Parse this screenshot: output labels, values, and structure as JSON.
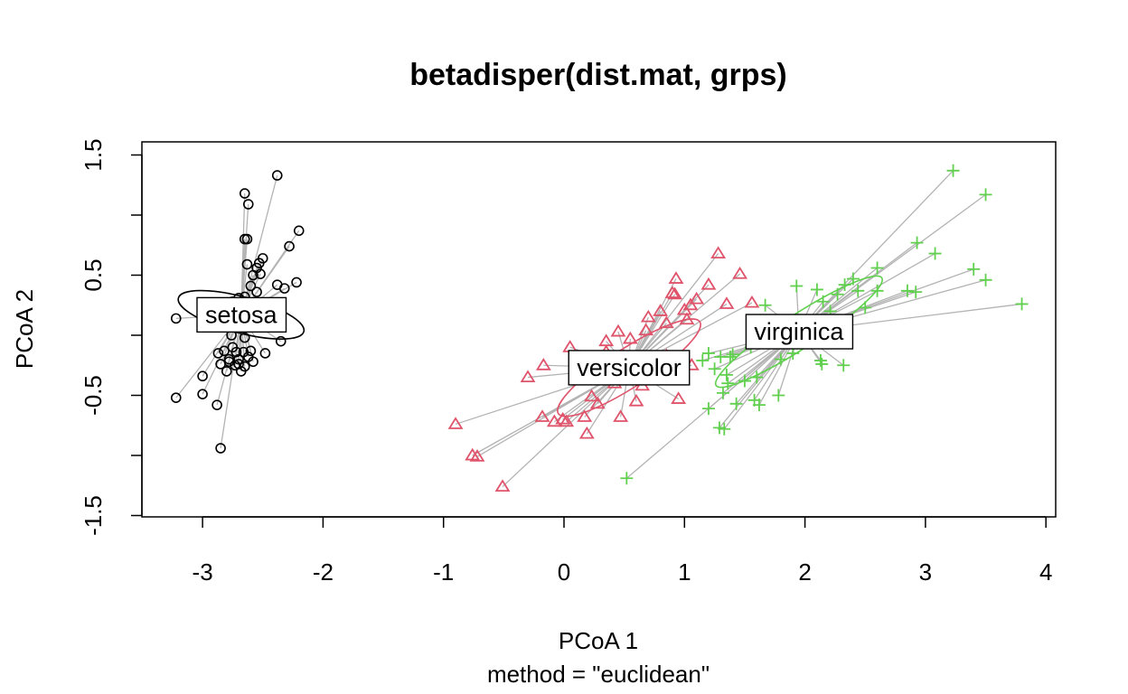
{
  "chart_data": {
    "type": "scatter",
    "title": "betadisper(dist.mat, grps)",
    "xlabel": "PCoA 1",
    "sublabel": "method = \"euclidean\"",
    "ylabel": "PCoA 2",
    "xlim": [
      -3.5,
      4.1
    ],
    "ylim": [
      -1.5,
      1.6
    ],
    "x_ticks": [
      "-3",
      "-2",
      "-1",
      "0",
      "1",
      "2",
      "3",
      "4"
    ],
    "y_ticks": [
      "-1.5",
      "-0.5",
      "0.5",
      "1.5"
    ],
    "segment_color": "#b3b3b3",
    "groups": [
      {
        "name": "setosa",
        "marker": "circle",
        "color": "#000000",
        "centroid": [
          -2.68,
          0.17
        ],
        "ellipse": {
          "rx": 0.15,
          "ry": 0.54,
          "angle_deg": 75
        },
        "points": [
          [
            -3.22,
            0.14
          ],
          [
            -3.22,
            -0.52
          ],
          [
            -3.0,
            -0.34
          ],
          [
            -3.0,
            -0.49
          ],
          [
            -2.88,
            -0.58
          ],
          [
            -2.85,
            -0.94
          ],
          [
            -2.38,
            1.33
          ],
          [
            -2.65,
            1.18
          ],
          [
            -2.62,
            1.09
          ],
          [
            -2.65,
            0.8
          ],
          [
            -2.63,
            0.8
          ],
          [
            -2.2,
            0.87
          ],
          [
            -2.28,
            0.74
          ],
          [
            -2.5,
            0.64
          ],
          [
            -2.53,
            0.6
          ],
          [
            -2.63,
            0.59
          ],
          [
            -2.55,
            0.56
          ],
          [
            -2.58,
            0.5
          ],
          [
            -2.52,
            0.51
          ],
          [
            -2.22,
            0.44
          ],
          [
            -2.38,
            0.42
          ],
          [
            -2.32,
            0.39
          ],
          [
            -2.6,
            0.41
          ],
          [
            -2.55,
            0.36
          ],
          [
            -2.65,
            0.32
          ],
          [
            -2.7,
            0.31
          ],
          [
            -2.75,
            0.28
          ],
          [
            -2.68,
            0.15
          ],
          [
            -2.7,
            0.08
          ],
          [
            -2.76,
            0.0
          ],
          [
            -2.65,
            -0.02
          ],
          [
            -2.35,
            -0.05
          ],
          [
            -2.75,
            -0.1
          ],
          [
            -2.82,
            -0.13
          ],
          [
            -2.72,
            -0.14
          ],
          [
            -2.66,
            -0.14
          ],
          [
            -2.6,
            -0.13
          ],
          [
            -2.48,
            -0.15
          ],
          [
            -2.62,
            -0.18
          ],
          [
            -2.7,
            -0.2
          ],
          [
            -2.78,
            -0.2
          ],
          [
            -2.87,
            -0.15
          ],
          [
            -2.78,
            -0.22
          ],
          [
            -2.7,
            -0.24
          ],
          [
            -2.58,
            -0.22
          ],
          [
            -2.65,
            -0.26
          ],
          [
            -2.73,
            -0.25
          ],
          [
            -2.85,
            -0.24
          ],
          [
            -2.8,
            -0.3
          ],
          [
            -2.68,
            -0.3
          ]
        ]
      },
      {
        "name": "versicolor",
        "marker": "triangle",
        "color": "#DF536B",
        "centroid": [
          0.54,
          -0.27
        ],
        "ellipse": {
          "rx": 0.7,
          "ry": 0.16,
          "angle_deg": 33
        },
        "points": [
          [
            -0.9,
            -0.74
          ],
          [
            -0.76,
            -1.0
          ],
          [
            -0.72,
            -1.01
          ],
          [
            -0.51,
            -1.26
          ],
          [
            -0.18,
            -0.68
          ],
          [
            -0.08,
            -0.72
          ],
          [
            -0.01,
            -0.7
          ],
          [
            0.02,
            -0.72
          ],
          [
            0.17,
            -0.68
          ],
          [
            0.19,
            -0.82
          ],
          [
            0.23,
            -0.51
          ],
          [
            0.28,
            -0.57
          ],
          [
            0.47,
            -0.68
          ],
          [
            -0.3,
            -0.35
          ],
          [
            -0.17,
            -0.25
          ],
          [
            0.05,
            -0.1
          ],
          [
            0.1,
            -0.18
          ],
          [
            0.2,
            -0.22
          ],
          [
            0.35,
            -0.14
          ],
          [
            0.36,
            -0.26
          ],
          [
            0.5,
            -0.18
          ],
          [
            0.6,
            -0.28
          ],
          [
            0.65,
            -0.42
          ],
          [
            0.72,
            -0.33
          ],
          [
            0.78,
            -0.26
          ],
          [
            0.85,
            -0.17
          ],
          [
            0.95,
            -0.53
          ],
          [
            1.06,
            -0.25
          ],
          [
            0.35,
            -0.05
          ],
          [
            0.45,
            0.03
          ],
          [
            0.55,
            -0.03
          ],
          [
            0.68,
            0.04
          ],
          [
            0.7,
            0.15
          ],
          [
            0.8,
            0.2
          ],
          [
            0.92,
            0.34
          ],
          [
            0.9,
            0.35
          ],
          [
            1.0,
            0.21
          ],
          [
            1.05,
            0.25
          ],
          [
            1.1,
            0.3
          ],
          [
            1.2,
            0.42
          ],
          [
            1.35,
            0.26
          ],
          [
            0.93,
            0.47
          ],
          [
            1.28,
            0.68
          ],
          [
            1.46,
            0.51
          ],
          [
            1.56,
            0.27
          ],
          [
            0.85,
            0.1
          ],
          [
            1.02,
            0.13
          ],
          [
            0.6,
            -0.55
          ],
          [
            0.3,
            -0.35
          ],
          [
            0.42,
            -0.4
          ]
        ]
      },
      {
        "name": "virginica",
        "marker": "plus",
        "color": "#61D04F",
        "centroid": [
          1.95,
          0.03
        ],
        "ellipse": {
          "rx": 0.82,
          "ry": 0.14,
          "angle_deg": 33
        },
        "points": [
          [
            3.23,
            1.37
          ],
          [
            3.5,
            1.17
          ],
          [
            2.93,
            0.77
          ],
          [
            3.08,
            0.68
          ],
          [
            3.4,
            0.55
          ],
          [
            3.5,
            0.46
          ],
          [
            3.8,
            0.26
          ],
          [
            2.6,
            0.56
          ],
          [
            2.4,
            0.47
          ],
          [
            2.33,
            0.42
          ],
          [
            2.1,
            0.38
          ],
          [
            1.93,
            0.41
          ],
          [
            2.6,
            0.37
          ],
          [
            2.92,
            0.36
          ],
          [
            2.85,
            0.37
          ],
          [
            2.44,
            0.37
          ],
          [
            2.27,
            0.34
          ],
          [
            2.15,
            0.28
          ],
          [
            1.67,
            0.25
          ],
          [
            2.5,
            0.23
          ],
          [
            2.21,
            0.2
          ],
          [
            1.9,
            0.1
          ],
          [
            1.8,
            -0.2
          ],
          [
            2.13,
            -0.21
          ],
          [
            2.14,
            -0.24
          ],
          [
            2.32,
            -0.25
          ],
          [
            1.38,
            -0.18
          ],
          [
            1.4,
            -0.16
          ],
          [
            1.3,
            -0.18
          ],
          [
            1.25,
            -0.28
          ],
          [
            1.35,
            -0.33
          ],
          [
            1.36,
            -0.4
          ],
          [
            1.5,
            -0.38
          ],
          [
            1.6,
            -0.35
          ],
          [
            1.2,
            -0.15
          ],
          [
            1.15,
            -0.21
          ],
          [
            1.32,
            -0.48
          ],
          [
            1.43,
            -0.57
          ],
          [
            1.78,
            -0.5
          ],
          [
            1.62,
            -0.58
          ],
          [
            1.58,
            -0.54
          ],
          [
            1.2,
            -0.61
          ],
          [
            1.29,
            -0.77
          ],
          [
            1.33,
            -0.78
          ],
          [
            0.52,
            -1.19
          ],
          [
            1.92,
            0.03
          ],
          [
            2.0,
            0.1
          ],
          [
            1.7,
            0.0
          ],
          [
            1.55,
            -0.1
          ],
          [
            1.9,
            -0.15
          ]
        ]
      }
    ]
  }
}
